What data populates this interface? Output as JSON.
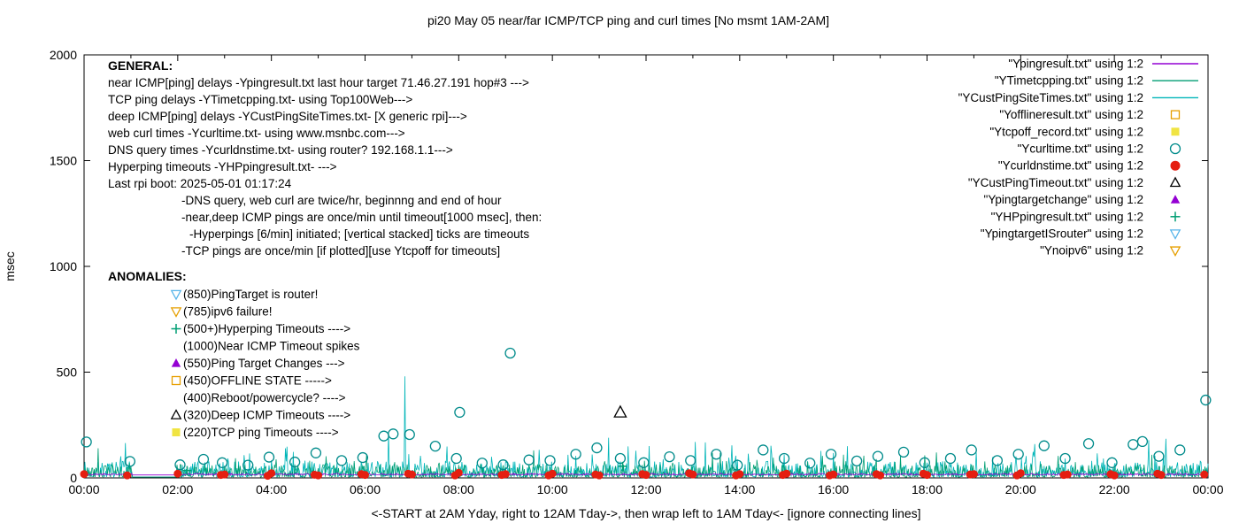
{
  "chart_data": {
    "type": "scatter",
    "title": "pi20 May 05  near/far ICMP/TCP ping and curl times [No msmt 1AM-2AM]",
    "ylabel": "msec",
    "xlabel": "<-START at 2AM Yday, right to 12AM Tday->, then wrap left to 1AM Tday<- [ignore connecting lines]",
    "ylim": [
      0,
      2000
    ],
    "yticks": [
      0,
      500,
      1000,
      1500,
      2000
    ],
    "xlim_hours": [
      0,
      24
    ],
    "xtick_hours": [
      0,
      2,
      4,
      6,
      8,
      10,
      12,
      14,
      16,
      18,
      20,
      22,
      24
    ],
    "xtick_labels": [
      "00:00",
      "02:00",
      "04:00",
      "06:00",
      "08:00",
      "10:00",
      "12:00",
      "14:00",
      "16:00",
      "18:00",
      "20:00",
      "22:00",
      "00:00"
    ],
    "grid": false,
    "legend_position": "top-right-inside",
    "gap_hours": [
      1.03,
      1.97
    ],
    "noise_series": [
      {
        "name": "YCustPingSiteTimes",
        "color": "#00b5b8",
        "seed": 7,
        "base": 4,
        "band": 75,
        "tailChance": 0.06,
        "tail": 110,
        "spikes": [
          [
            0.88,
            165
          ],
          [
            4.3,
            140
          ],
          [
            6.5,
            215
          ],
          [
            6.85,
            480
          ],
          [
            11.2,
            190
          ],
          [
            13.05,
            170
          ],
          [
            16.3,
            150
          ],
          [
            20.3,
            160
          ],
          [
            23.1,
            185
          ]
        ]
      },
      {
        "name": "YTimetcpping",
        "color": "#009e73",
        "seed": 42,
        "base": 4,
        "band": 60,
        "tailChance": 0.05,
        "tail": 80,
        "spikes": [
          [
            0.3,
            140
          ],
          [
            9.6,
            130
          ],
          [
            18.2,
            120
          ]
        ]
      },
      {
        "name": "Ypingresult",
        "color": "#9400d3",
        "seed": 3,
        "base": 14,
        "band": 8,
        "tailChance": 0.0,
        "tail": 0,
        "spikes": []
      }
    ],
    "marker_series": [
      {
        "name": "Ycurltime",
        "marker": "circle-open",
        "color": "#008b8b",
        "size": 5.5,
        "points": [
          [
            0.05,
            170
          ],
          [
            0.98,
            78
          ],
          [
            2.05,
            62
          ],
          [
            2.55,
            88
          ],
          [
            2.95,
            72
          ],
          [
            3.5,
            60
          ],
          [
            3.95,
            98
          ],
          [
            4.5,
            75
          ],
          [
            4.95,
            118
          ],
          [
            5.5,
            82
          ],
          [
            5.95,
            96
          ],
          [
            6.4,
            198
          ],
          [
            6.6,
            208
          ],
          [
            6.95,
            205
          ],
          [
            7.5,
            150
          ],
          [
            7.95,
            92
          ],
          [
            8.02,
            310
          ],
          [
            8.5,
            70
          ],
          [
            8.95,
            62
          ],
          [
            9.1,
            590
          ],
          [
            9.5,
            85
          ],
          [
            9.95,
            82
          ],
          [
            10.5,
            112
          ],
          [
            10.95,
            142
          ],
          [
            11.45,
            92
          ],
          [
            11.95,
            72
          ],
          [
            12.5,
            100
          ],
          [
            12.95,
            82
          ],
          [
            13.5,
            112
          ],
          [
            13.95,
            60
          ],
          [
            14.5,
            132
          ],
          [
            14.95,
            92
          ],
          [
            15.5,
            70
          ],
          [
            15.95,
            112
          ],
          [
            16.5,
            80
          ],
          [
            16.95,
            102
          ],
          [
            17.5,
            122
          ],
          [
            17.95,
            72
          ],
          [
            18.5,
            92
          ],
          [
            18.95,
            132
          ],
          [
            19.5,
            82
          ],
          [
            19.95,
            112
          ],
          [
            20.5,
            152
          ],
          [
            20.95,
            92
          ],
          [
            21.45,
            162
          ],
          [
            21.95,
            72
          ],
          [
            22.4,
            158
          ],
          [
            22.6,
            172
          ],
          [
            22.95,
            102
          ],
          [
            23.4,
            132
          ],
          [
            23.95,
            368
          ]
        ]
      },
      {
        "name": "YHPpingresult",
        "marker": "plus",
        "color": "#009e73",
        "size": 5,
        "points": [
          [
            2.2,
            35
          ],
          [
            11.5,
            55
          ]
        ]
      },
      {
        "name": "YCustPingTimeout",
        "marker": "tri-up-open",
        "color": "#000000",
        "size": 7,
        "points": [
          [
            11.45,
            310
          ]
        ]
      },
      {
        "name": "Ycurldnstime",
        "marker": "circle-filled",
        "color": "#e51e10",
        "size": 4.5,
        "points": [
          [
            0.0,
            18
          ],
          [
            0.92,
            12
          ],
          [
            2.0,
            20
          ],
          [
            2.92,
            14
          ],
          [
            3.0,
            16
          ],
          [
            3.92,
            10
          ],
          [
            4.0,
            22
          ],
          [
            4.92,
            15
          ],
          [
            5.0,
            12
          ],
          [
            5.92,
            18
          ],
          [
            6.0,
            14
          ],
          [
            6.92,
            20
          ],
          [
            7.0,
            16
          ],
          [
            7.92,
            12
          ],
          [
            8.0,
            24
          ],
          [
            8.92,
            14
          ],
          [
            9.0,
            18
          ],
          [
            9.92,
            12
          ],
          [
            10.0,
            20
          ],
          [
            10.92,
            16
          ],
          [
            11.0,
            12
          ],
          [
            11.92,
            18
          ],
          [
            12.0,
            14
          ],
          [
            12.92,
            22
          ],
          [
            13.0,
            16
          ],
          [
            13.92,
            12
          ],
          [
            14.0,
            18
          ],
          [
            14.92,
            14
          ],
          [
            15.0,
            20
          ],
          [
            15.92,
            12
          ],
          [
            16.0,
            16
          ],
          [
            16.92,
            18
          ],
          [
            17.0,
            12
          ],
          [
            17.92,
            20
          ],
          [
            18.0,
            14
          ],
          [
            18.92,
            16
          ],
          [
            19.0,
            18
          ],
          [
            19.92,
            12
          ],
          [
            20.0,
            22
          ],
          [
            20.92,
            14
          ],
          [
            21.0,
            16
          ],
          [
            21.92,
            18
          ],
          [
            22.0,
            12
          ],
          [
            22.92,
            20
          ],
          [
            23.0,
            14
          ],
          [
            23.92,
            16
          ]
        ]
      }
    ],
    "legend": [
      {
        "label": "\"Ypingresult.txt\" using 1:2",
        "type": "line",
        "color": "#9400d3"
      },
      {
        "label": "\"YTimetcpping.txt\" using 1:2",
        "type": "line",
        "color": "#009e73"
      },
      {
        "label": "\"YCustPingSiteTimes.txt\" using 1:2",
        "type": "line",
        "color": "#00b5b8"
      },
      {
        "label": "\"Yofflineresult.txt\" using 1:2",
        "type": "square-open",
        "color": "#e69f00"
      },
      {
        "label": "\"Ytcpoff_record.txt\" using 1:2",
        "type": "square-filled",
        "color": "#f0e442"
      },
      {
        "label": "\"Ycurltime.txt\" using 1:2",
        "type": "circle-open",
        "color": "#008b8b"
      },
      {
        "label": "\"Ycurldnstime.txt\" using 1:2",
        "type": "circle-filled",
        "color": "#e51e10"
      },
      {
        "label": "\"YCustPingTimeout.txt\" using 1:2",
        "type": "tri-up-open",
        "color": "#000000"
      },
      {
        "label": "\"Ypingtargetchange\" using 1:2",
        "type": "tri-up-filled",
        "color": "#9400d3"
      },
      {
        "label": "\"YHPpingresult.txt\" using 1:2",
        "type": "plus",
        "color": "#009e73"
      },
      {
        "label": "\"YpingtargetISrouter\" using 1:2",
        "type": "tri-down-open",
        "color": "#56b4e9"
      },
      {
        "label": "\"Ynoipv6\" using 1:2",
        "type": "tri-down-open",
        "color": "#e69f00"
      }
    ],
    "annotations": {
      "general_header": "GENERAL:",
      "general": [
        {
          "indent": 0,
          "text": "near ICMP[ping] delays -Ypingresult.txt last hour target 71.46.27.191 hop#3 --->"
        },
        {
          "indent": 0,
          "text": "TCP ping delays -YTimetcpping.txt- using Top100Web--->"
        },
        {
          "indent": 0,
          "text": "deep ICMP[ping] delays -YCustPingSiteTimes.txt- [X generic rpi]--->"
        },
        {
          "indent": 0,
          "text": "web curl times -Ycurltime.txt- using www.msnbc.com--->"
        },
        {
          "indent": 0,
          "text": "DNS query times -Ycurldnstime.txt- using router? 192.168.1.1--->"
        },
        {
          "indent": 0,
          "text": "Hyperping timeouts -YHPpingresult.txt- --->"
        },
        {
          "indent": 0,
          "text": "Last rpi boot: 2025-05-01 01:17:24"
        },
        {
          "indent": 1,
          "text": "-DNS query, web curl are twice/hr, beginnng and end of hour"
        },
        {
          "indent": 1,
          "text": "-near,deep ICMP pings are once/min until timeout[1000 msec], then:"
        },
        {
          "indent": 2,
          "text": "-Hyperpings [6/min] initiated; [vertical stacked] ticks are timeouts"
        },
        {
          "indent": 1,
          "text": "-TCP pings are once/min [if plotted][use Ytcpoff for timeouts]"
        }
      ],
      "anomalies_header": "ANOMALIES:",
      "anomalies": [
        {
          "icon": "tri-down-open",
          "color": "#56b4e9",
          "text": "(850)PingTarget is router!"
        },
        {
          "icon": "tri-down-open",
          "color": "#e69f00",
          "text": "(785)ipv6 failure!"
        },
        {
          "icon": "plus",
          "color": "#009e73",
          "text": "(500+)Hyperping Timeouts ---->"
        },
        {
          "icon": null,
          "color": null,
          "text": "(1000)Near ICMP Timeout spikes"
        },
        {
          "icon": "tri-up-filled",
          "color": "#9400d3",
          "text": "(550)Ping Target Changes --->"
        },
        {
          "icon": "square-open",
          "color": "#e69f00",
          "text": "(450)OFFLINE STATE ----->"
        },
        {
          "icon": null,
          "color": null,
          "text": "(400)Reboot/powercycle? ---->"
        },
        {
          "icon": "tri-up-open",
          "color": "#000000",
          "text": "(320)Deep ICMP Timeouts ---->"
        },
        {
          "icon": "square-filled",
          "color": "#f0e442",
          "text": "(220)TCP ping Timeouts ---->"
        }
      ]
    }
  }
}
